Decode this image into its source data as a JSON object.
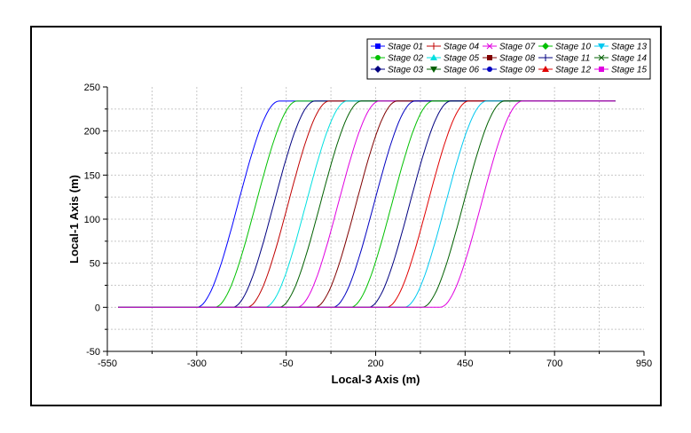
{
  "chart_data": {
    "type": "line",
    "xlabel": "Local-3 Axis (m)",
    "ylabel": "Local-1 Axis (m)",
    "xlim": [
      -550,
      950
    ],
    "ylim": [
      -50,
      250
    ],
    "x_ticks": [
      "-550",
      "-300",
      "-50",
      "200",
      "450",
      "700",
      "950"
    ],
    "y_ticks": [
      "-50",
      "0",
      "50",
      "100",
      "150",
      "200",
      "250"
    ],
    "grid": true,
    "legend_position": "top-right",
    "curve_shape": {
      "y_min": 0,
      "y_max": 234,
      "x_left_end": -520,
      "x_right_end": 870,
      "transition_width": 230
    },
    "series": [
      {
        "name": "Stage 01",
        "color": "#0000ff",
        "marker": "square",
        "x_start": -300,
        "x_end": -70
      },
      {
        "name": "Stage 02",
        "color": "#00c000",
        "marker": "circle",
        "x_start": -250,
        "x_end": -20
      },
      {
        "name": "Stage 03",
        "color": "#000080",
        "marker": "diamond",
        "x_start": -200,
        "x_end": 30
      },
      {
        "name": "Stage 04",
        "color": "#c00000",
        "marker": "plus",
        "x_start": -160,
        "x_end": 70
      },
      {
        "name": "Stage 05",
        "color": "#00e0e0",
        "marker": "triangle-up",
        "x_start": -110,
        "x_end": 120
      },
      {
        "name": "Stage 06",
        "color": "#006000",
        "marker": "triangle-down",
        "x_start": -70,
        "x_end": 160
      },
      {
        "name": "Stage 07",
        "color": "#e000e0",
        "marker": "cross",
        "x_start": -20,
        "x_end": 210
      },
      {
        "name": "Stage 08",
        "color": "#800000",
        "marker": "square",
        "x_start": 30,
        "x_end": 260
      },
      {
        "name": "Stage 09",
        "color": "#0000c0",
        "marker": "circle",
        "x_start": 80,
        "x_end": 310
      },
      {
        "name": "Stage 10",
        "color": "#00c000",
        "marker": "diamond",
        "x_start": 130,
        "x_end": 360
      },
      {
        "name": "Stage 11",
        "color": "#000080",
        "marker": "plus",
        "x_start": 180,
        "x_end": 410
      },
      {
        "name": "Stage 12",
        "color": "#e00000",
        "marker": "triangle-up",
        "x_start": 230,
        "x_end": 460
      },
      {
        "name": "Stage 13",
        "color": "#00c8f0",
        "marker": "triangle-down",
        "x_start": 280,
        "x_end": 510
      },
      {
        "name": "Stage 14",
        "color": "#006000",
        "marker": "cross",
        "x_start": 330,
        "x_end": 560
      },
      {
        "name": "Stage 15",
        "color": "#e000e0",
        "marker": "square",
        "x_start": 380,
        "x_end": 610
      }
    ],
    "legend_order": [
      [
        "Stage 01",
        "Stage 04",
        "Stage 07",
        "Stage 10",
        "Stage 13"
      ],
      [
        "Stage 02",
        "Stage 05",
        "Stage 08",
        "Stage 11",
        "Stage 14"
      ],
      [
        "Stage 03",
        "Stage 06",
        "Stage 09",
        "Stage 12",
        "Stage 15"
      ]
    ]
  }
}
